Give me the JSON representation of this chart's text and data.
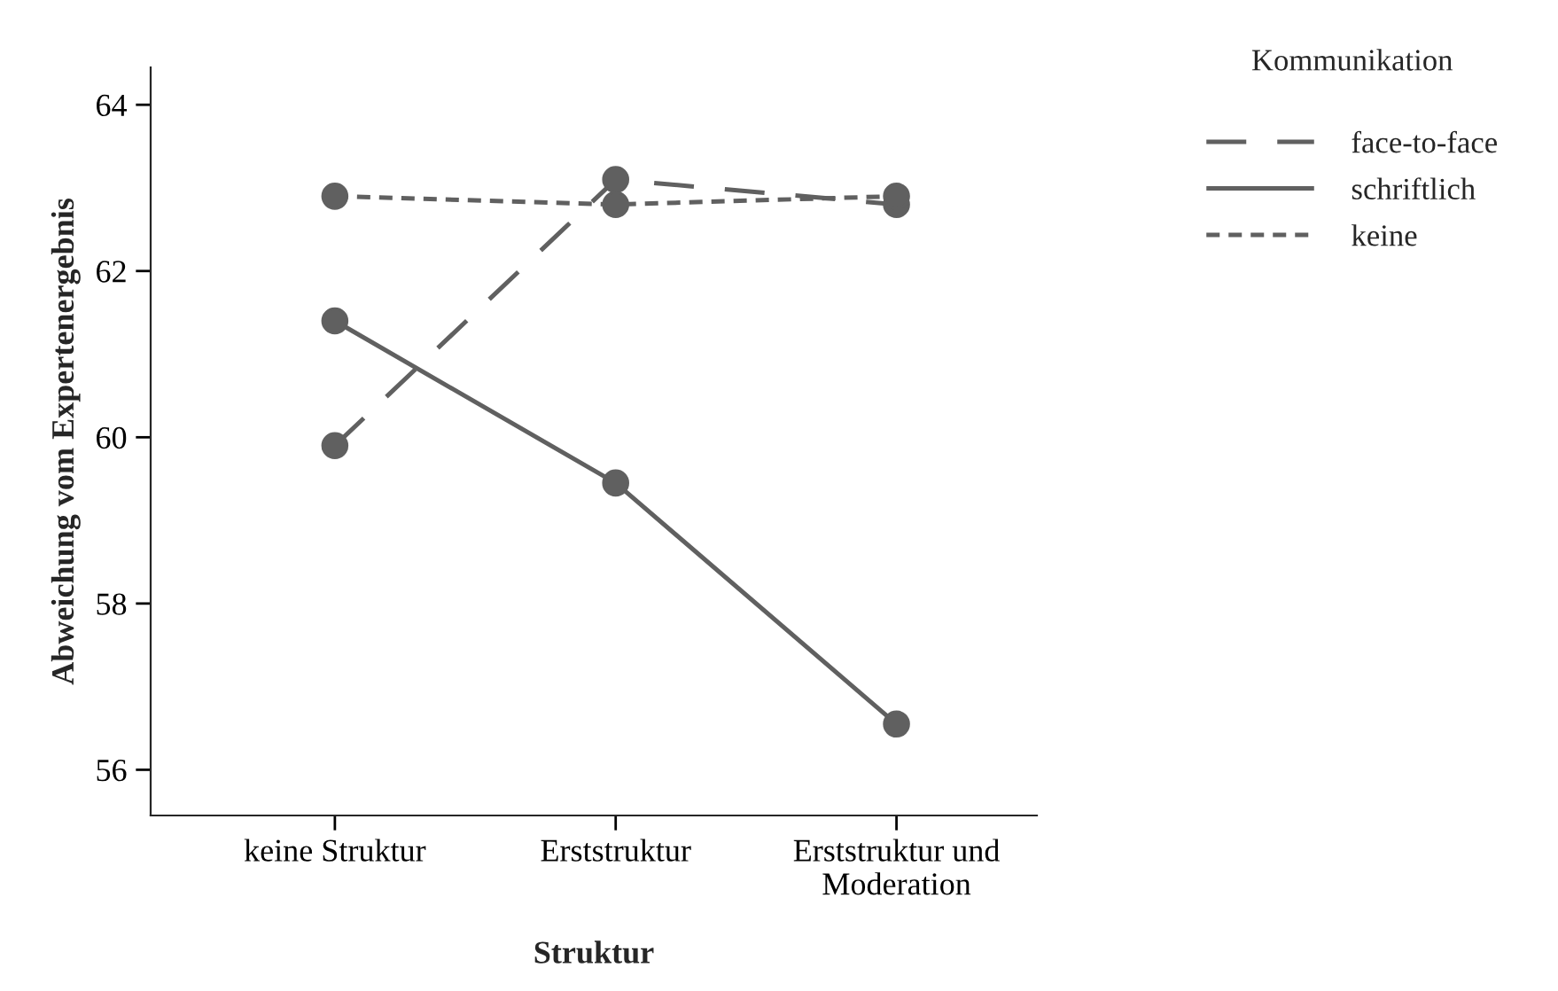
{
  "chart_data": {
    "type": "line",
    "xlabel": "Struktur",
    "ylabel": "Abweichung vom Expertenergebnis",
    "legend_title": "Kommunikation",
    "categories": [
      "keine Struktur",
      "Erststruktur",
      "Erststruktur und\nModeration"
    ],
    "series": [
      {
        "name": "face-to-face",
        "color": "#606060",
        "line_style": "dashed",
        "values": [
          59.9,
          63.1,
          62.8
        ]
      },
      {
        "name": "schriftlich",
        "color": "#606060",
        "line_style": "solid",
        "values": [
          61.4,
          59.45,
          56.55
        ]
      },
      {
        "name": "keine",
        "color": "#606060",
        "line_style": "dotted",
        "values": [
          62.9,
          62.8,
          62.9
        ]
      }
    ],
    "ylim": [
      55.45,
      64.45
    ],
    "yticks": [
      56,
      58,
      60,
      62,
      64
    ],
    "marker": "circle",
    "grid": false,
    "legend": "top right"
  }
}
